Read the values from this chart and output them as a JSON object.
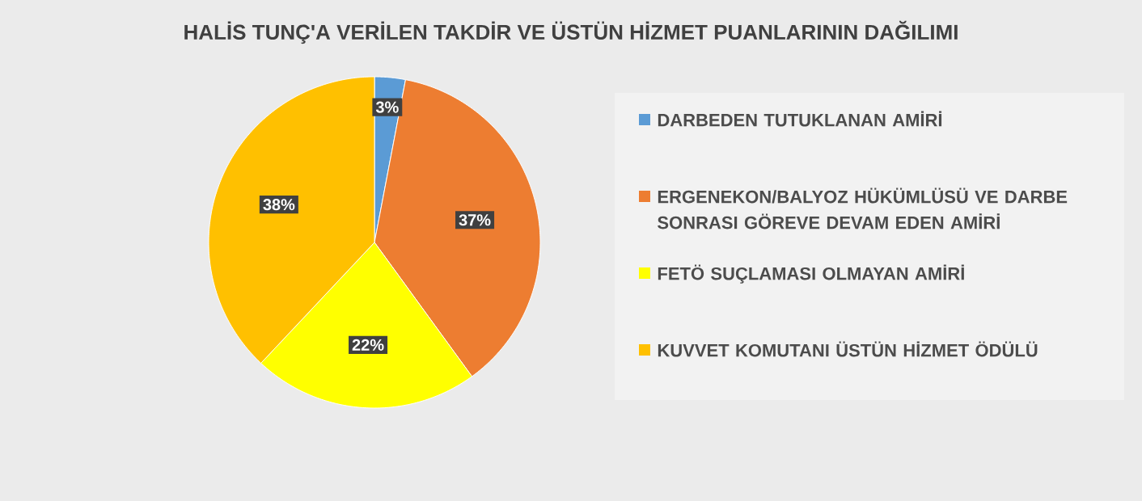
{
  "chart_data": {
    "type": "pie",
    "title": "HALİS TUNÇ'A VERİLEN TAKDİR VE ÜSTÜN HİZMET PUANLARININ DAĞILIMI",
    "categories": [
      "DARBEDEN TUTUKLANAN AMİRİ",
      "ERGENEKON/BALYOZ HÜKÜMLÜSÜ VE DARBE SONRASI GÖREVE DEVAM EDEN AMİRİ",
      "FETÖ SUÇLAMASI OLMAYAN AMİRİ",
      "KUVVET KOMUTANI ÜSTÜN HİZMET ÖDÜLÜ"
    ],
    "values": [
      3,
      37,
      22,
      38
    ],
    "value_labels": [
      "3%",
      "37%",
      "22%",
      "38%"
    ],
    "colors": [
      "#5b9bd5",
      "#ed7d31",
      "#ffff00",
      "#ffc000"
    ],
    "legend": "right"
  }
}
